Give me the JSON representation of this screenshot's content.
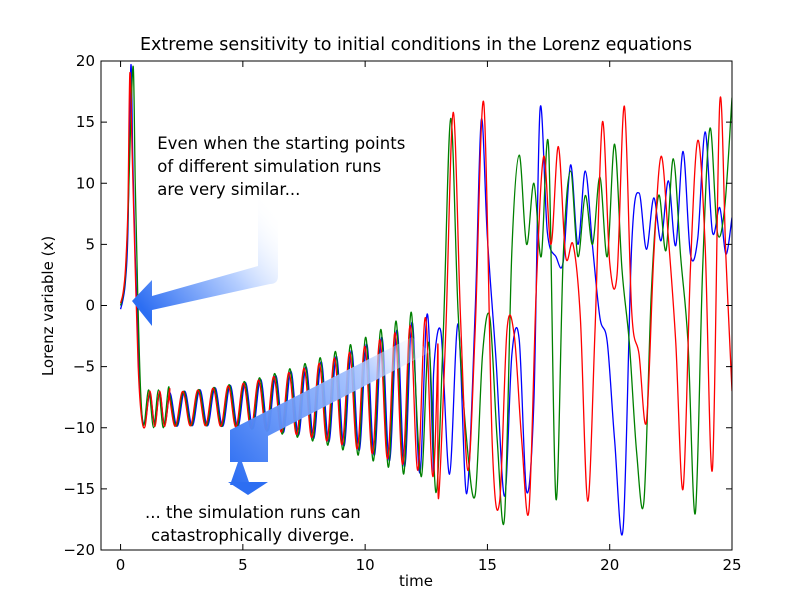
{
  "chart_data": {
    "type": "line",
    "title": "Extreme sensitivity to initial conditions in the Lorenz equations",
    "xlabel": "time",
    "ylabel": "Lorenz variable (x)",
    "xlim": [
      -0.8,
      25
    ],
    "ylim": [
      -20,
      20
    ],
    "xticks": [
      0,
      5,
      10,
      15,
      20,
      25
    ],
    "yticks": [
      -20,
      -15,
      -10,
      -5,
      0,
      5,
      10,
      15,
      20
    ],
    "grid": false,
    "legend": "none",
    "annotations": [
      {
        "lines": [
          "Even when the starting points",
          "of different simulation runs",
          "are very similar..."
        ],
        "position": [
          1.5,
          12.8
        ]
      },
      {
        "lines": [
          "... the simulation runs can",
          "catastrophically diverge."
        ],
        "position": [
          1.0,
          -17.4
        ]
      }
    ],
    "series": [
      {
        "color": "#0000ff",
        "x": [
          0,
          0.1,
          0.2,
          0.3,
          0.42,
          0.5,
          0.6,
          0.72,
          0.85,
          1.0,
          1.2,
          1.4,
          1.6,
          1.8,
          2.0,
          12.8,
          13.1,
          13.45,
          13.8,
          14.15,
          14.5,
          14.75,
          15.0,
          15.35,
          15.7,
          16.0,
          16.3,
          16.6,
          16.9,
          17.15,
          17.45,
          17.8,
          18.1,
          18.4,
          18.7,
          19.0,
          19.3,
          19.6,
          19.9,
          20.2,
          20.55,
          20.9,
          21.2,
          21.5,
          21.8,
          22.1,
          22.4,
          22.7,
          23.0,
          23.3,
          23.6,
          23.9,
          24.2,
          24.5,
          24.75,
          25.0
        ],
        "y": [
          -0.3,
          0.5,
          2.0,
          6.0,
          19.6,
          12.0,
          4.0,
          -3.0,
          -8.5,
          -9.6,
          -7.2,
          -9.7,
          -7.1,
          -9.8,
          -7.0,
          -5.5,
          -2.2,
          -13.8,
          -1.5,
          -15.4,
          -0.4,
          15.2,
          5.5,
          -4.4,
          -15.6,
          -4.0,
          -2.8,
          -15.2,
          -7.8,
          16.0,
          6.0,
          4.0,
          3.6,
          11.5,
          5.0,
          11.0,
          4.8,
          -1.0,
          -3.0,
          -11.0,
          -18.2,
          5.0,
          9.2,
          4.6,
          8.8,
          5.3,
          10.2,
          4.9,
          12.6,
          4.2,
          5.5,
          14.2,
          6.0,
          8.0,
          4.2,
          7.2
        ]
      },
      {
        "color": "#008000",
        "x": [
          0,
          0.1,
          0.2,
          0.3,
          0.4,
          0.52,
          0.6,
          0.7,
          0.82,
          0.95,
          1.15,
          1.35,
          1.55,
          1.75,
          1.95,
          12.0,
          12.3,
          12.6,
          12.9,
          13.2,
          13.5,
          13.8,
          14.15,
          14.5,
          14.8,
          15.1,
          15.4,
          15.7,
          16.0,
          16.3,
          16.6,
          16.9,
          17.2,
          17.5,
          17.8,
          18.1,
          18.4,
          18.7,
          19.0,
          19.3,
          19.6,
          19.9,
          20.2,
          20.5,
          20.8,
          21.1,
          21.4,
          21.7,
          22.0,
          22.3,
          22.6,
          22.9,
          23.2,
          23.5,
          23.8,
          24.1,
          24.4,
          24.7,
          25.0
        ],
        "y": [
          0.0,
          0.8,
          2.5,
          7.0,
          14.0,
          19.5,
          10.0,
          1.0,
          -7.0,
          -9.8,
          -6.9,
          -10.0,
          -6.9,
          -10.0,
          -6.8,
          -4.0,
          -14.0,
          -3.0,
          -15.3,
          -2.0,
          15.3,
          -0.5,
          -11.0,
          -15.5,
          -4.0,
          -1.0,
          -11.0,
          -17.3,
          4.5,
          12.3,
          5.0,
          10.0,
          4.0,
          13.0,
          -15.8,
          4.0,
          11.0,
          4.0,
          9.0,
          5.0,
          10.5,
          4.0,
          13.2,
          3.0,
          -3.0,
          -12.0,
          -16.0,
          1.0,
          9.0,
          4.5,
          12.0,
          4.0,
          -3.0,
          -17.0,
          3.0,
          14.5,
          6.0,
          8.0,
          17.0
        ]
      },
      {
        "color": "#ff0000",
        "x": [
          0,
          0.1,
          0.2,
          0.3,
          0.38,
          0.48,
          0.6,
          0.72,
          0.85,
          1.0,
          1.2,
          1.4,
          1.6,
          1.8,
          2.0,
          13.0,
          13.3,
          13.6,
          13.9,
          14.2,
          14.5,
          14.85,
          15.2,
          15.5,
          15.8,
          16.1,
          16.4,
          16.7,
          17.0,
          17.3,
          17.6,
          17.9,
          18.2,
          18.5,
          18.8,
          19.1,
          19.4,
          19.7,
          20.0,
          20.3,
          20.6,
          20.9,
          21.2,
          21.5,
          21.8,
          22.1,
          22.4,
          22.7,
          23.0,
          23.3,
          23.6,
          23.9,
          24.2,
          24.5,
          24.75,
          25.0
        ],
        "y": [
          0.2,
          1.0,
          3.0,
          8.0,
          19.0,
          12.0,
          3.0,
          -5.0,
          -9.0,
          -9.9,
          -7.0,
          -9.9,
          -7.0,
          -9.9,
          -6.9,
          -15.8,
          -2.0,
          15.8,
          -1.0,
          -13.5,
          -2.0,
          16.6,
          -11.5,
          -16.0,
          -2.0,
          -2.5,
          -11.0,
          -16.7,
          1.5,
          12.2,
          5.0,
          13.0,
          4.0,
          5.0,
          -1.0,
          -16.0,
          -2.0,
          15.0,
          3.5,
          2.5,
          16.3,
          -0.5,
          -4.0,
          -9.5,
          4.0,
          12.2,
          5.5,
          -3.0,
          -15.0,
          3.0,
          13.5,
          5.0,
          -13.4,
          16.6,
          4.0,
          -7.0
        ]
      }
    ]
  }
}
